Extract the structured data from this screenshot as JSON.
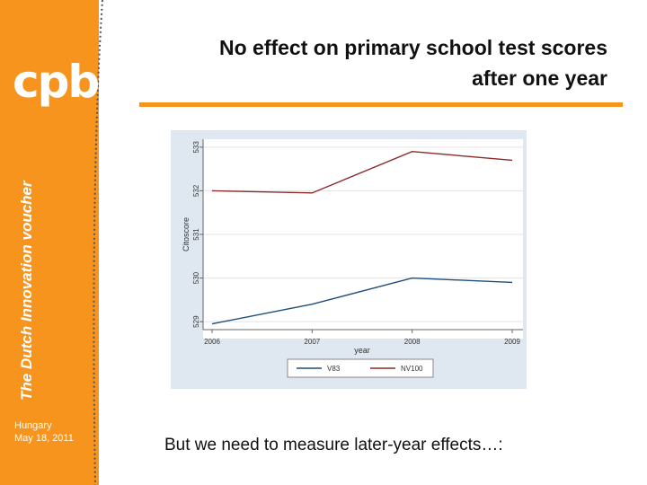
{
  "sidebar": {
    "logo_text": "cpb",
    "vertical_title": "The Dutch Innovation voucher",
    "event_location": "Hungary",
    "event_date": "May 18, 2011"
  },
  "slide": {
    "title_line1": "No effect on primary school test scores",
    "title_line2": "after one year",
    "footer": "But we need to measure later-year effects…:"
  },
  "colors": {
    "accent": "#f7941d",
    "series_v83": "#1f4e79",
    "series_nv100": "#8b2a2a"
  },
  "chart_data": {
    "type": "line",
    "title": "",
    "xlabel": "year",
    "ylabel": "Citoscore",
    "x": [
      2006,
      2007,
      2008,
      2009
    ],
    "xticks": [
      "2006",
      "2007",
      "2008",
      "2009"
    ],
    "yticks": [
      "529",
      "530",
      "531",
      "532",
      "533"
    ],
    "ylim": [
      528.9,
      533.1
    ],
    "grid": true,
    "legend": "bottom",
    "series": [
      {
        "name": "V83",
        "color": "#1f4e79",
        "values": [
          528.95,
          529.4,
          530.0,
          529.9
        ]
      },
      {
        "name": "NV100",
        "color": "#8b2a2a",
        "values": [
          532.0,
          531.95,
          532.9,
          532.7
        ]
      }
    ]
  }
}
